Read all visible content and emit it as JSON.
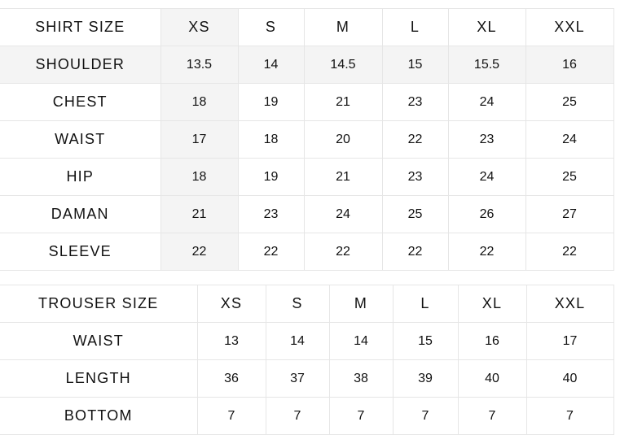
{
  "shirt_table": {
    "header": [
      "SHIRT SIZE",
      "XS",
      "S",
      "M",
      "L",
      "XL",
      "XXL"
    ],
    "rows": [
      {
        "label": "SHOULDER",
        "values": [
          "13.5",
          "14",
          "14.5",
          "15",
          "15.5",
          "16"
        ]
      },
      {
        "label": "CHEST",
        "values": [
          "18",
          "19",
          "21",
          "23",
          "24",
          "25"
        ]
      },
      {
        "label": "WAIST",
        "values": [
          "17",
          "18",
          "20",
          "22",
          "23",
          "24"
        ]
      },
      {
        "label": "HIP",
        "values": [
          "18",
          "19",
          "21",
          "23",
          "24",
          "25"
        ]
      },
      {
        "label": "DAMAN",
        "values": [
          "21",
          "23",
          "24",
          "25",
          "26",
          "27"
        ]
      },
      {
        "label": "SLEEVE",
        "values": [
          "22",
          "22",
          "22",
          "22",
          "22",
          "22"
        ]
      }
    ]
  },
  "trouser_table": {
    "header": [
      "TROUSER SIZE",
      "XS",
      "S",
      "M",
      "L",
      "XL",
      "XXL"
    ],
    "rows": [
      {
        "label": "WAIST",
        "values": [
          "13",
          "14",
          "14",
          "15",
          "16",
          "17"
        ]
      },
      {
        "label": "LENGTH",
        "values": [
          "36",
          "37",
          "38",
          "39",
          "40",
          "40"
        ]
      },
      {
        "label": "BOTTOM",
        "values": [
          "7",
          "7",
          "7",
          "7",
          "7",
          "7"
        ]
      }
    ]
  },
  "colors": {
    "stripe": "#f4f4f4",
    "border": "#e6e6e6",
    "text": "#111111"
  }
}
